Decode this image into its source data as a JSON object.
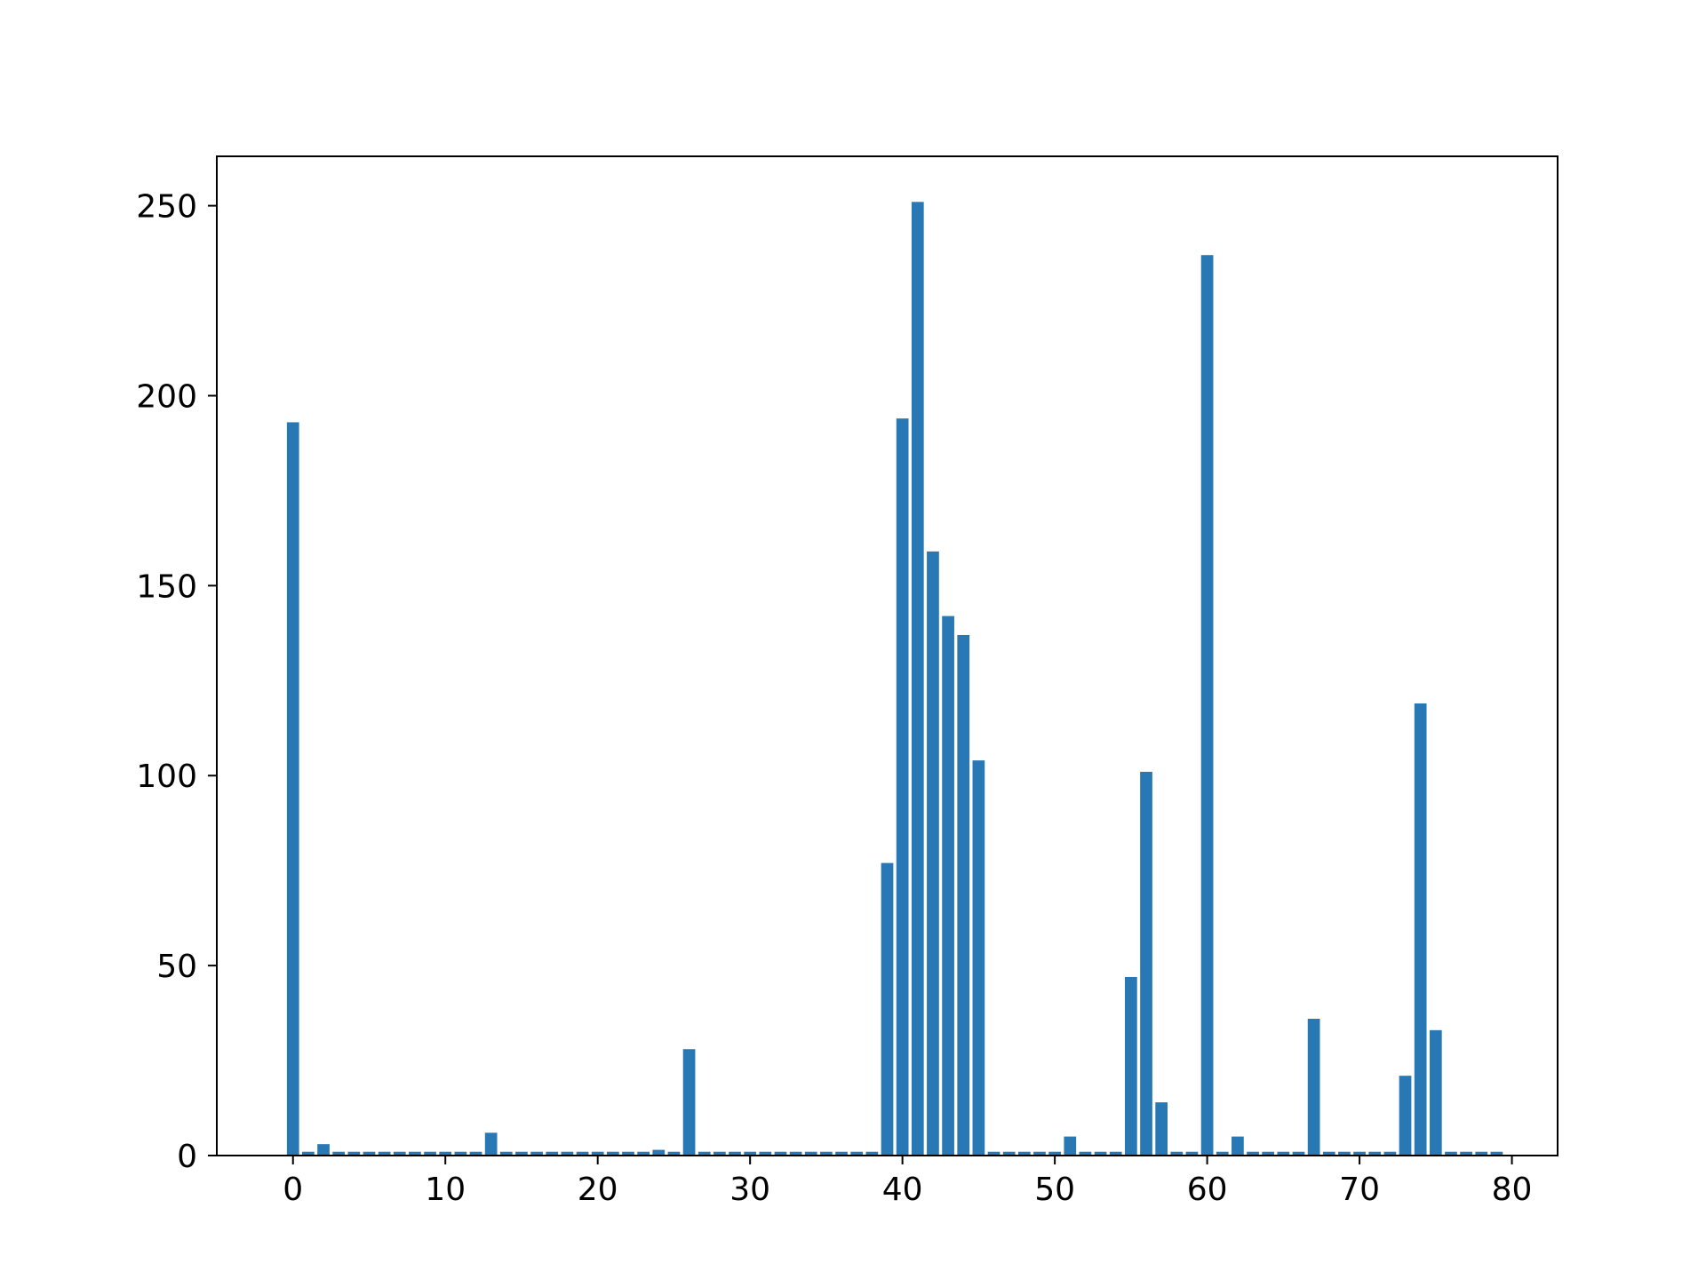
{
  "chart_data": {
    "type": "bar",
    "title": "",
    "xlabel": "",
    "ylabel": "",
    "bar_color": "#2878b5",
    "xlim": [
      -5,
      83
    ],
    "ylim": [
      0,
      263
    ],
    "x_ticks": [
      0,
      10,
      20,
      30,
      40,
      50,
      60,
      70,
      80
    ],
    "y_ticks": [
      0,
      50,
      100,
      150,
      200,
      250
    ],
    "grid": false,
    "x": [
      0,
      1,
      2,
      3,
      4,
      5,
      6,
      7,
      8,
      9,
      10,
      11,
      12,
      13,
      14,
      15,
      16,
      17,
      18,
      19,
      20,
      21,
      22,
      23,
      24,
      25,
      26,
      27,
      28,
      29,
      30,
      31,
      32,
      33,
      34,
      35,
      36,
      37,
      38,
      39,
      40,
      41,
      42,
      43,
      44,
      45,
      46,
      47,
      48,
      49,
      50,
      51,
      52,
      53,
      54,
      55,
      56,
      57,
      58,
      59,
      60,
      61,
      62,
      63,
      64,
      65,
      66,
      67,
      68,
      69,
      70,
      71,
      72,
      73,
      74,
      75,
      76,
      77,
      78,
      79
    ],
    "values": [
      193,
      1,
      3,
      1,
      1,
      1,
      1,
      1,
      1,
      1,
      1,
      1,
      1,
      6,
      1,
      1,
      1,
      1,
      1,
      1,
      1,
      1,
      1,
      1,
      1.5,
      1,
      28,
      1,
      1,
      1,
      1,
      1,
      1,
      1,
      1,
      1,
      1,
      1,
      1,
      77,
      194,
      251,
      159,
      142,
      137,
      104,
      1,
      1,
      1,
      1,
      1,
      5,
      1,
      1,
      1,
      47,
      101,
      14,
      1,
      1,
      237,
      1,
      5,
      1,
      1,
      1,
      1,
      36,
      1,
      1,
      1,
      1,
      1,
      21,
      119,
      33,
      1,
      1,
      1,
      1
    ]
  }
}
